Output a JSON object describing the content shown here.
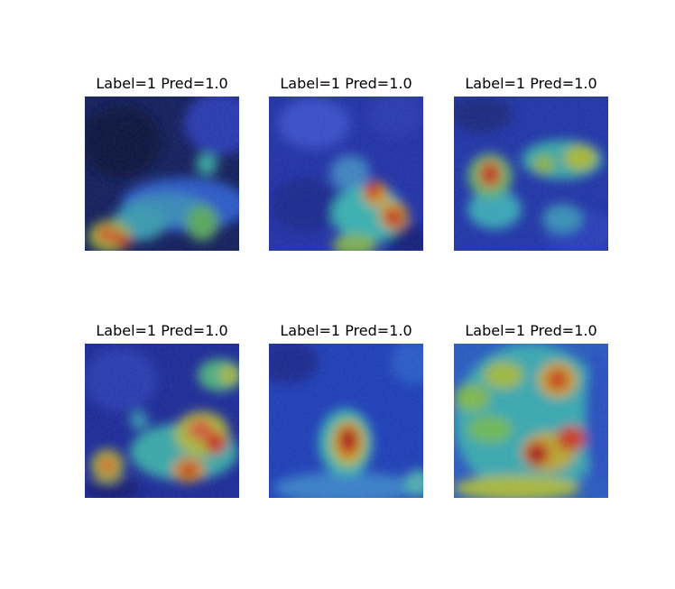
{
  "figure": {
    "panels": [
      {
        "title": "Label=1 Pred=1.0",
        "label": 1,
        "pred": 1.0
      },
      {
        "title": "Label=1 Pred=1.0",
        "label": 1,
        "pred": 1.0
      },
      {
        "title": "Label=1 Pred=1.0",
        "label": 1,
        "pred": 1.0
      },
      {
        "title": "Label=1 Pred=1.0",
        "label": 1,
        "pred": 1.0
      },
      {
        "title": "Label=1 Pred=1.0",
        "label": 1,
        "pred": 1.0
      },
      {
        "title": "Label=1 Pred=1.0",
        "label": 1,
        "pred": 1.0
      }
    ],
    "colormap": "jet",
    "colors": {
      "background": "#ffffff",
      "low": "#1a2a9a",
      "mid": "#40c0b0",
      "high": "#c01818"
    }
  }
}
